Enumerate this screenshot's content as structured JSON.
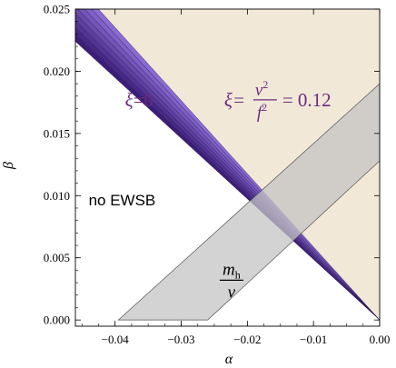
{
  "chart_data": {
    "type": "area",
    "title": "",
    "xlabel": "α",
    "ylabel": "β",
    "xlim": [
      -0.046,
      0.0
    ],
    "ylim": [
      -0.0005,
      0.025
    ],
    "x_ticks": [
      -0.04,
      -0.03,
      -0.02,
      -0.01,
      0.0
    ],
    "x_tick_labels": [
      "−0.04",
      "−0.03",
      "−0.02",
      "−0.01",
      "0.00"
    ],
    "y_ticks": [
      0.0,
      0.005,
      0.01,
      0.015,
      0.02,
      0.025
    ],
    "y_tick_labels": [
      "0.000",
      "0.005",
      "0.010",
      "0.015",
      "0.020",
      "0.025"
    ],
    "grid": false,
    "regions": [
      {
        "name": "ewsb-allowed",
        "color": "#f1e8d8",
        "points": [
          [
            -0.0435,
            0.025
          ],
          [
            0.0,
            0.025
          ],
          [
            0.0,
            0.0
          ]
        ]
      },
      {
        "name": "mh-band",
        "color": "#c4c4c4",
        "opacity": 0.75,
        "points": [
          [
            -0.0395,
            0.0
          ],
          [
            -0.026,
            0.0
          ],
          [
            0.0,
            0.0128
          ],
          [
            0.0,
            0.019
          ]
        ]
      }
    ],
    "xi_band": {
      "color_dark": "#3b1e78",
      "color_light": "#8a6bd2",
      "lower_edge": [
        [
          -0.046,
          0.0224
        ],
        [
          0.0,
          0.0
        ]
      ],
      "upper_edge": [
        [
          -0.046,
          0.025
        ],
        [
          -0.0425,
          0.025
        ],
        [
          0.0,
          0.0
        ]
      ],
      "layers": 8
    },
    "annotations": {
      "xi0": {
        "prefix": "ξ",
        "rest": "=0",
        "x": -0.0385,
        "y": 0.0177
      },
      "xi012": {
        "prefix": "ξ=",
        "numerator": "v",
        "denominator": "f",
        "exponent": "2",
        "suffix": "= 0.12",
        "x": -0.0235,
        "y": 0.0177
      },
      "no_ewsb": {
        "text": "no EWSB",
        "x": -0.044,
        "y": 0.0092
      },
      "mh_v": {
        "numerator": "m",
        "num_sub": "h",
        "denominator": "v",
        "x": -0.0224,
        "y": 0.0032
      }
    }
  }
}
